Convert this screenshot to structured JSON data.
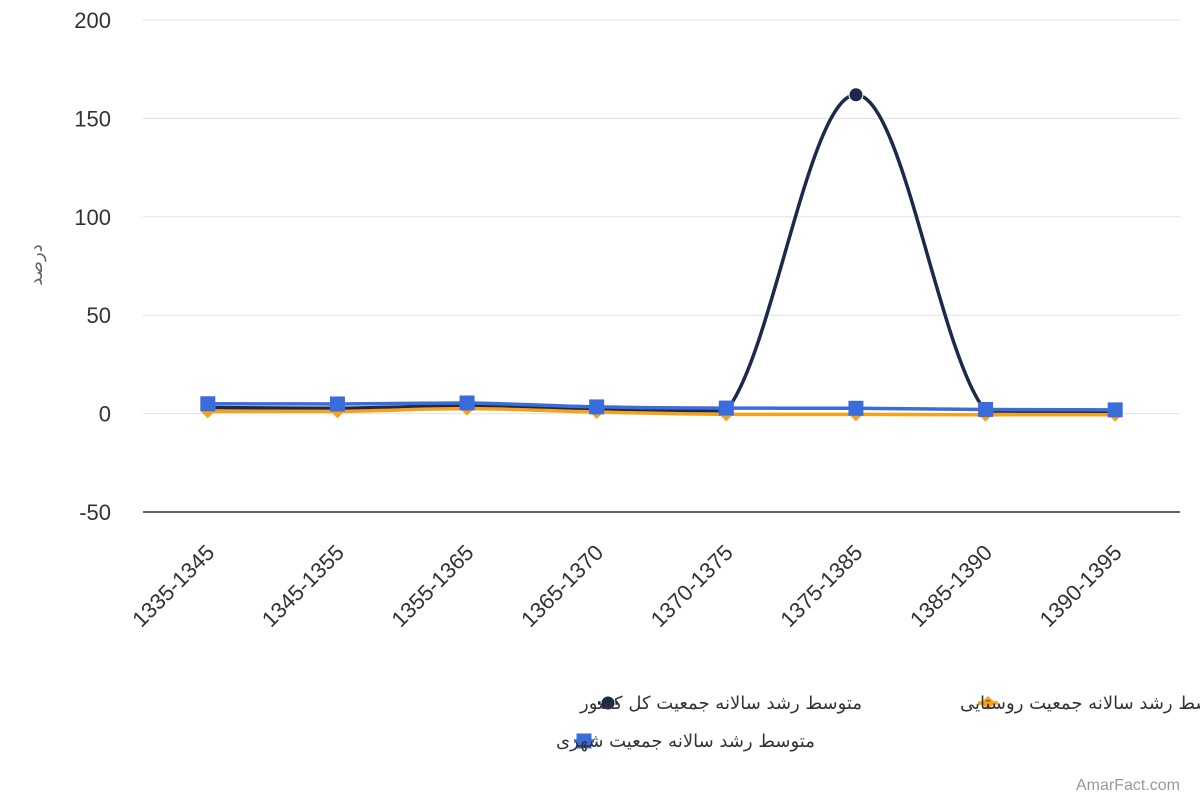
{
  "credit": "AmarFact.com",
  "chart_data": {
    "type": "line",
    "title": "",
    "xlabel": "",
    "ylabel": "درصد",
    "categories": [
      "1335-1345",
      "1345-1355",
      "1355-1365",
      "1365-1370",
      "1370-1375",
      "1375-1385",
      "1385-1390",
      "1390-1395"
    ],
    "ylim": [
      -50,
      200
    ],
    "yticks": [
      -50,
      0,
      50,
      100,
      150,
      200
    ],
    "grid": true,
    "legend_position": "bottom",
    "series": [
      {
        "name": "متوسط رشد سالانه جمعیت کل کشور",
        "color": "#1b2a4a",
        "marker": "circle",
        "values": [
          3.1,
          2.7,
          3.9,
          2.0,
          1.5,
          162.0,
          1.3,
          1.2
        ]
      },
      {
        "name": "متوسط رشد سالانه جمعیت روستایی",
        "color": "#f7a21b",
        "marker": "diamond",
        "values": [
          1.1,
          1.1,
          2.5,
          0.8,
          -0.4,
          -0.4,
          -0.6,
          -0.6
        ]
      },
      {
        "name": "متوسط رشد سالانه جمعیت شهری",
        "color": "#3a6cdb",
        "marker": "square",
        "values": [
          5.0,
          4.9,
          5.4,
          3.4,
          2.8,
          2.7,
          2.1,
          1.9
        ]
      }
    ]
  }
}
